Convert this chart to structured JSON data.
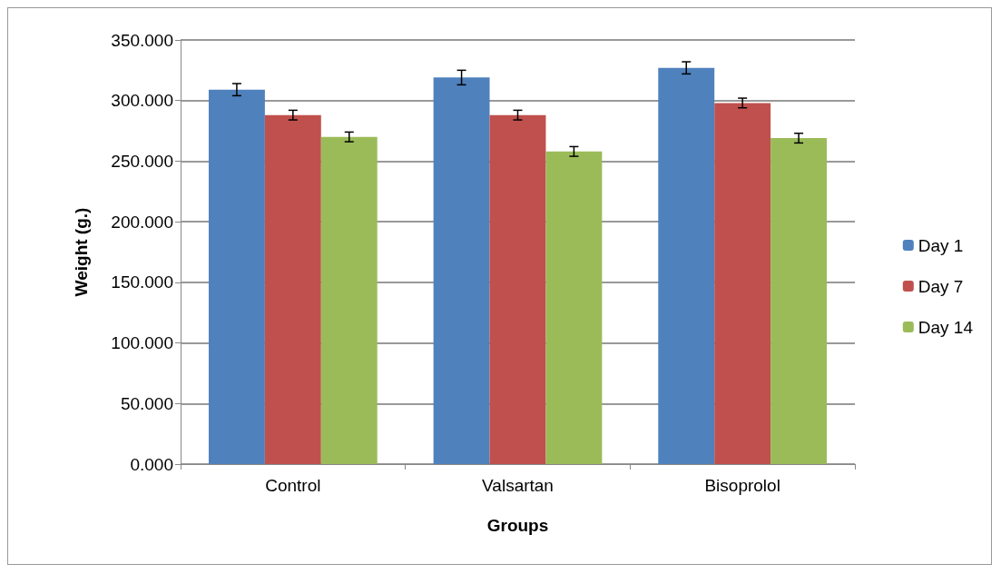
{
  "chart_data": {
    "type": "bar",
    "xlabel": "Groups",
    "ylabel": "Weight (g.)",
    "categories": [
      "Control",
      "Valsartan",
      "Bisoprolol"
    ],
    "series": [
      {
        "name": "Day 1",
        "color": "#4f81bd",
        "values": [
          309,
          319,
          327
        ],
        "errors": [
          5,
          6,
          5
        ]
      },
      {
        "name": "Day 7",
        "color": "#c0504d",
        "values": [
          288,
          288,
          298
        ],
        "errors": [
          4,
          4,
          4
        ]
      },
      {
        "name": "Day 14",
        "color": "#9bbb59",
        "values": [
          270,
          258,
          269
        ],
        "errors": [
          4,
          4,
          4
        ]
      }
    ],
    "ylim": [
      0,
      350
    ],
    "yticks": [
      {
        "value": 0,
        "label": "0.000"
      },
      {
        "value": 50,
        "label": "50.000"
      },
      {
        "value": 100,
        "label": "100.000"
      },
      {
        "value": 150,
        "label": "150.000"
      },
      {
        "value": 200,
        "label": "200.000"
      },
      {
        "value": 250,
        "label": "250.000"
      },
      {
        "value": 300,
        "label": "300.000"
      },
      {
        "value": 350,
        "label": "350.000"
      }
    ],
    "grid": "y",
    "legend": "right"
  }
}
